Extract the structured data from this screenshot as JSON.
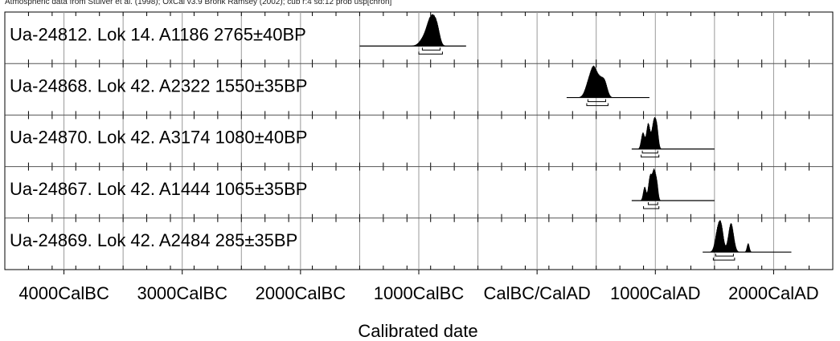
{
  "header_note": "Atmospheric data from Stuiver et al. (1998); OxCal v3.9 Bronk Ramsey (2002); cub r:4 sd:12 prob usp[chron]",
  "chart_data": {
    "type": "oxcal-multiplot",
    "xlabel": "Calibrated date",
    "xlim": [
      -4500,
      2500
    ],
    "x_ticks": [
      {
        "value": -4000,
        "label": "4000CalBC"
      },
      {
        "value": -3000,
        "label": "3000CalBC"
      },
      {
        "value": -2000,
        "label": "2000CalBC"
      },
      {
        "value": -1000,
        "label": "1000CalBC"
      },
      {
        "value": 0,
        "label": "CalBC/CalAD"
      },
      {
        "value": 1000,
        "label": "1000CalAD"
      },
      {
        "value": 2000,
        "label": "2000CalAD"
      }
    ],
    "minor_tick_step": 200,
    "grid": true,
    "series": [
      {
        "name": "Ua-24812. Lok 14. A1186  2765±40BP",
        "radiocarbon_bp": 2765,
        "error": 40,
        "line_range": [
          -1500,
          -600
        ],
        "peaks": [
          [
            -945,
            40,
            0.55
          ],
          [
            -905,
            28,
            1.0
          ],
          [
            -870,
            25,
            0.95
          ],
          [
            -840,
            22,
            0.7
          ]
        ],
        "range_1sigma": [
          -970,
          -820
        ],
        "range_2sigma": [
          -1000,
          -800
        ]
      },
      {
        "name": "Ua-24868. Lok 42. A2322  1550±35BP",
        "radiocarbon_bp": 1550,
        "error": 35,
        "line_range": [
          250,
          950
        ],
        "peaks": [
          [
            440,
            30,
            0.75
          ],
          [
            480,
            25,
            1.0
          ],
          [
            530,
            30,
            0.85
          ],
          [
            575,
            22,
            0.55
          ]
        ],
        "range_1sigma": [
          430,
          580
        ],
        "range_2sigma": [
          420,
          600
        ]
      },
      {
        "name": "Ua-24870. Lok 42. A3174  1080±40BP",
        "radiocarbon_bp": 1080,
        "error": 40,
        "line_range": [
          800,
          1500
        ],
        "peaks": [
          [
            895,
            14,
            0.55
          ],
          [
            940,
            15,
            0.85
          ],
          [
            990,
            18,
            1.0
          ],
          [
            1015,
            12,
            0.45
          ]
        ],
        "range_1sigma": [
          890,
          1020
        ],
        "range_2sigma": [
          880,
          1030
        ]
      },
      {
        "name": "Ua-24867. Lok 42. A1444  1065±35BP",
        "radiocarbon_bp": 1065,
        "error": 35,
        "line_range": [
          800,
          1500
        ],
        "peaks": [
          [
            910,
            12,
            0.45
          ],
          [
            955,
            14,
            0.75
          ],
          [
            990,
            16,
            1.0
          ],
          [
            1015,
            10,
            0.35
          ]
        ],
        "range_1sigma": [
          940,
          1020
        ],
        "range_2sigma": [
          900,
          1030
        ]
      },
      {
        "name": "Ua-24869. Lok 42. A2484  285±35BP",
        "radiocarbon_bp": 285,
        "error": 35,
        "line_range": [
          1400,
          2150
        ],
        "peaks": [
          [
            1530,
            22,
            0.8
          ],
          [
            1560,
            18,
            0.65
          ],
          [
            1640,
            22,
            1.0
          ],
          [
            1785,
            10,
            0.3
          ]
        ],
        "range_1sigma": [
          1510,
          1660
        ],
        "range_2sigma": [
          1490,
          1670
        ]
      }
    ]
  }
}
